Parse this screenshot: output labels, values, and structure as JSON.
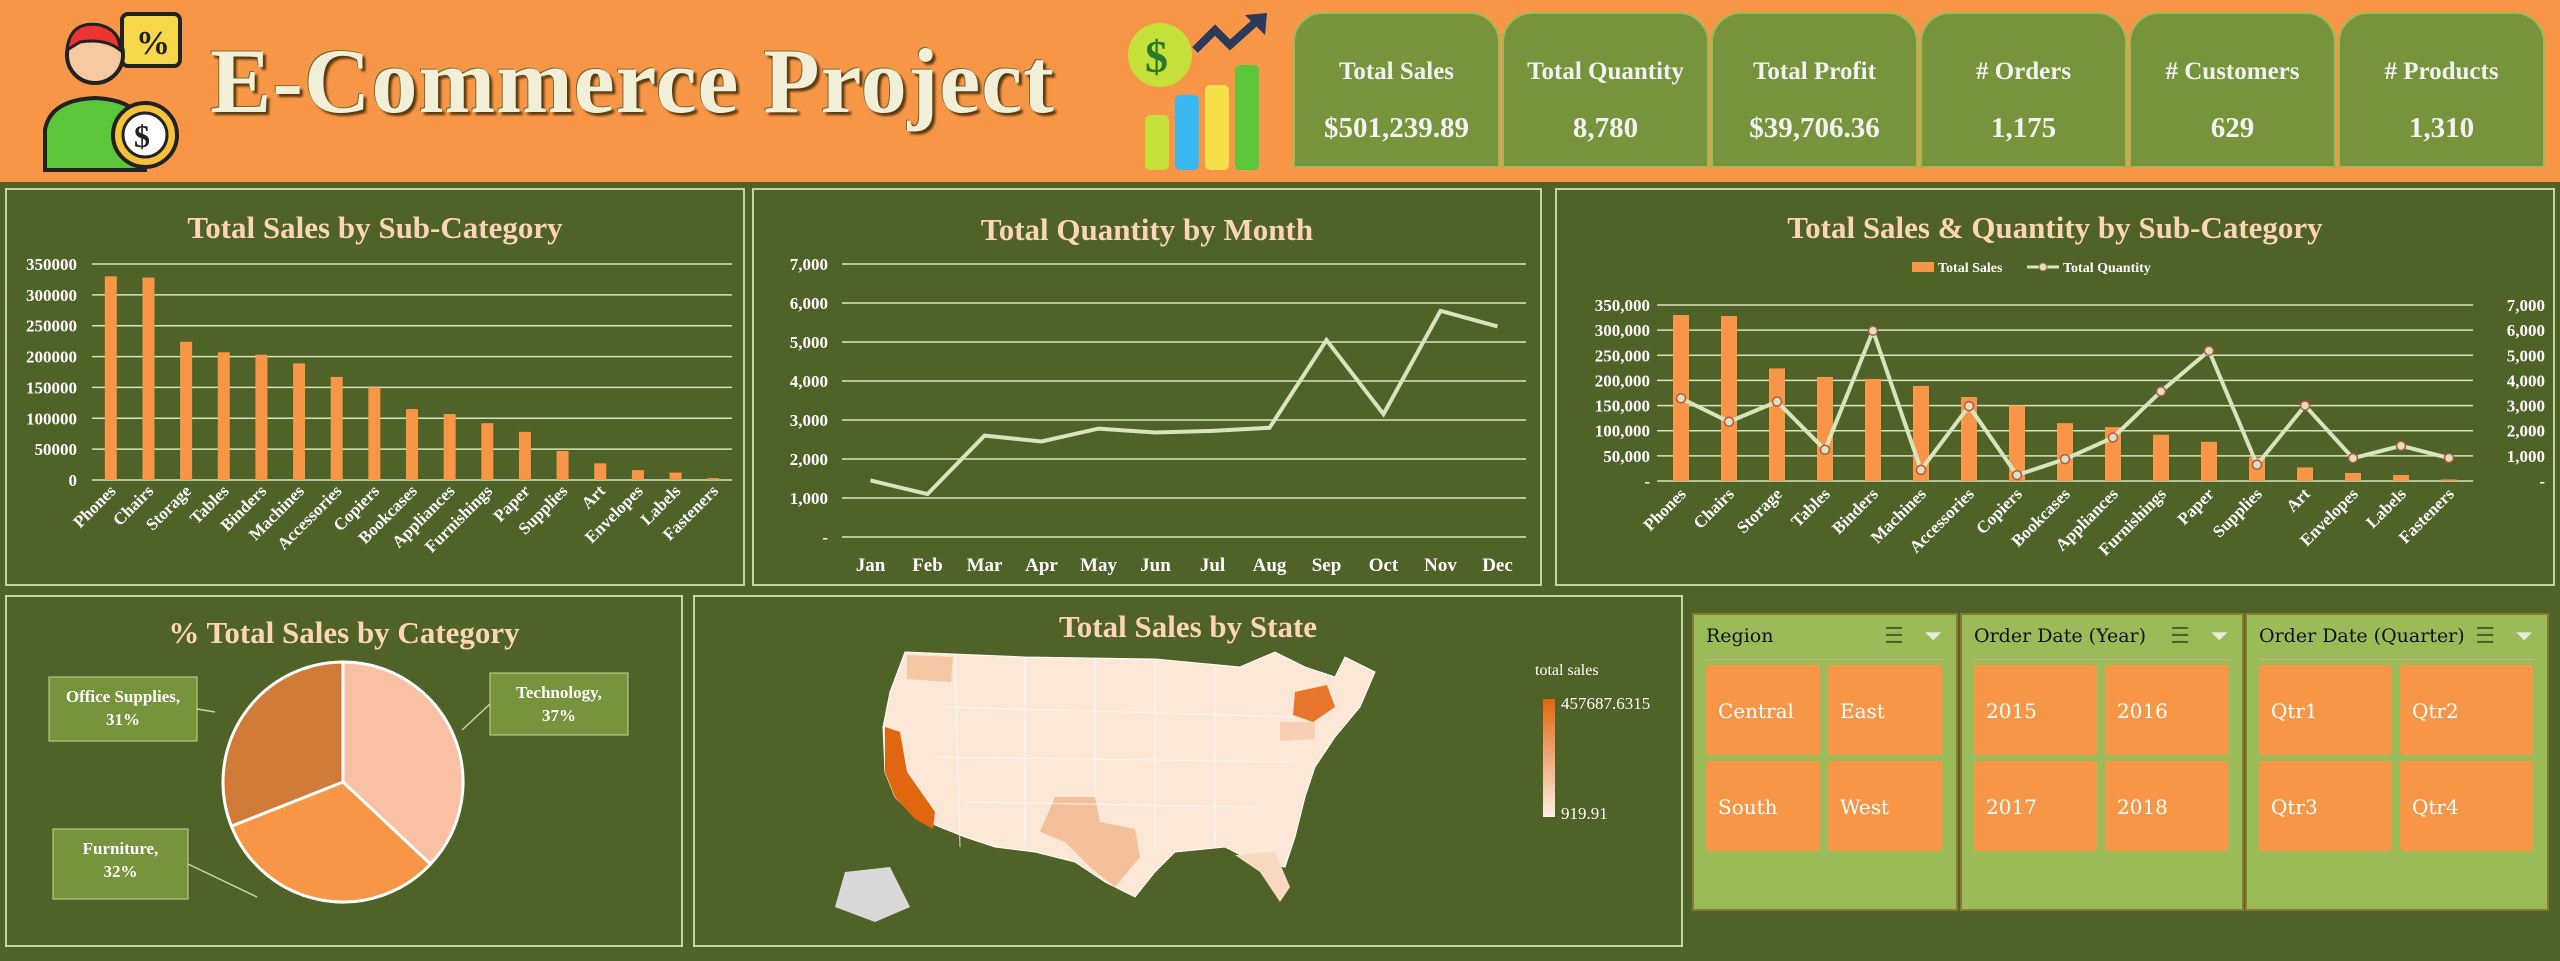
{
  "header": {
    "title": "E-Commerce Project"
  },
  "kpis": [
    {
      "label": "Total Sales",
      "value": "$501,239.89"
    },
    {
      "label": "Total Quantity",
      "value": "8,780"
    },
    {
      "label": "Total Profit",
      "value": "$39,706.36"
    },
    {
      "label": "# Orders",
      "value": "1,175"
    },
    {
      "label": "# Customers",
      "value": "629"
    },
    {
      "label": "# Products",
      "value": "1,310"
    }
  ],
  "colors": {
    "orange": "#f79646",
    "green": "#4f6228",
    "line": "#c4d79b"
  },
  "map": {
    "title": "Total Sales by State",
    "legend_title": "total sales",
    "legend_max": "457687.6315",
    "legend_min": "919.91"
  },
  "slicers": [
    {
      "title": "Region",
      "items": [
        "Central",
        "East",
        "South",
        "West"
      ]
    },
    {
      "title": "Order Date (Year)",
      "items": [
        "2015",
        "2016",
        "2017",
        "2018"
      ]
    },
    {
      "title": "Order Date (Quarter)",
      "items": [
        "Qtr1",
        "Qtr2",
        "Qtr3",
        "Qtr4"
      ]
    }
  ],
  "chart_data": [
    {
      "type": "bar",
      "title": "Total Sales by Sub-Category",
      "categories": [
        "Phones",
        "Chairs",
        "Storage",
        "Tables",
        "Binders",
        "Machines",
        "Accessories",
        "Copiers",
        "Bookcases",
        "Appliances",
        "Furnishings",
        "Paper",
        "Supplies",
        "Art",
        "Envelopes",
        "Labels",
        "Fasteners"
      ],
      "values": [
        330000,
        328000,
        224000,
        207000,
        203000,
        189000,
        167000,
        150000,
        115000,
        107000,
        92000,
        78000,
        47000,
        27000,
        16000,
        12000,
        3000
      ],
      "ylim": [
        0,
        350000
      ],
      "yticks": [
        "0",
        "50000",
        "100000",
        "150000",
        "200000",
        "250000",
        "300000",
        "350000"
      ],
      "grid": true
    },
    {
      "type": "line",
      "title": "Total Quantity by Month",
      "categories": [
        "Jan",
        "Feb",
        "Mar",
        "Apr",
        "May",
        "Jun",
        "Jul",
        "Aug",
        "Sep",
        "Oct",
        "Nov",
        "Dec"
      ],
      "values": [
        1450,
        1100,
        2600,
        2450,
        2780,
        2680,
        2720,
        2800,
        5050,
        3150,
        5800,
        5400
      ],
      "ylim": [
        0,
        7000
      ],
      "yticks": [
        "-",
        "1,000",
        "2,000",
        "3,000",
        "4,000",
        "5,000",
        "6,000",
        "7,000"
      ],
      "grid": true
    },
    {
      "type": "bar+line",
      "title": "Total Sales & Quantity by Sub-Category",
      "legend": [
        "Total Sales",
        "Total Quantity"
      ],
      "legend_position": "top",
      "categories": [
        "Phones",
        "Chairs",
        "Storage",
        "Tables",
        "Binders",
        "Machines",
        "Accessories",
        "Copiers",
        "Bookcases",
        "Appliances",
        "Furnishings",
        "Paper",
        "Supplies",
        "Art",
        "Envelopes",
        "Labels",
        "Fasteners"
      ],
      "series": [
        {
          "name": "Total Sales",
          "axis": "left",
          "values": [
            330000,
            328000,
            224000,
            207000,
            203000,
            189000,
            167000,
            150000,
            115000,
            107000,
            92000,
            78000,
            47000,
            27000,
            16000,
            12000,
            3000
          ]
        },
        {
          "name": "Total Quantity",
          "axis": "right",
          "values": [
            3289,
            2356,
            3158,
            1241,
            5974,
            440,
            2976,
            234,
            868,
            1729,
            3563,
            5178,
            647,
            3000,
            906,
            1400,
            914
          ]
        }
      ],
      "ylim": [
        0,
        350000
      ],
      "y2lim": [
        0,
        7000
      ],
      "yticks": [
        "-",
        "50,000",
        "100,000",
        "150,000",
        "200,000",
        "250,000",
        "300,000",
        "350,000"
      ],
      "y2ticks": [
        "-",
        "1,000",
        "2,000",
        "3,000",
        "4,000",
        "5,000",
        "6,000",
        "7,000"
      ]
    },
    {
      "type": "pie",
      "title": "% Total Sales by Category",
      "slices": [
        {
          "label": "Technology",
          "value": 37,
          "text": "Technology,",
          "pct": "37%",
          "color": "#fac0a4"
        },
        {
          "label": "Furniture",
          "value": 32,
          "text": "Furniture,",
          "pct": "32%",
          "color": "#f79646"
        },
        {
          "label": "Office Supplies",
          "value": 31,
          "text": "Office Supplies,",
          "pct": "31%",
          "color": "#d07c38"
        }
      ]
    }
  ]
}
